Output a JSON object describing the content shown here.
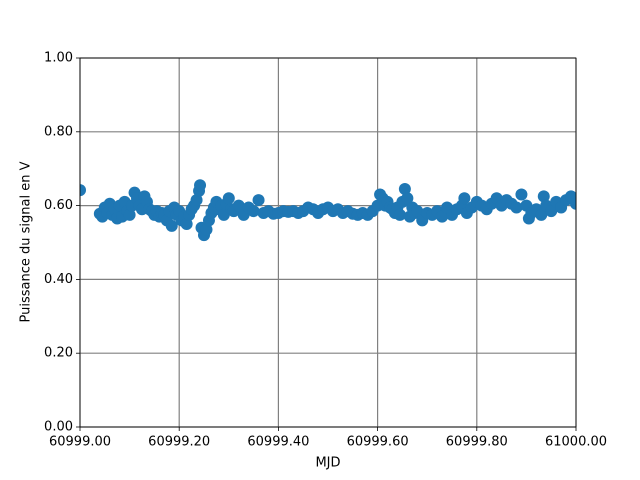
{
  "chart_data": {
    "type": "scatter",
    "xlabel": "MJD",
    "ylabel": "Puissance du signal en V",
    "x": [
      60999.0,
      60999.04,
      60999.045,
      60999.05,
      60999.055,
      60999.06,
      60999.065,
      60999.07,
      60999.075,
      60999.08,
      60999.085,
      60999.09,
      60999.095,
      60999.1,
      60999.105,
      60999.11,
      60999.115,
      60999.12,
      60999.125,
      60999.13,
      60999.135,
      60999.14,
      60999.145,
      60999.15,
      60999.155,
      60999.16,
      60999.165,
      60999.17,
      60999.175,
      60999.18,
      60999.185,
      60999.19,
      60999.195,
      60999.2,
      60999.205,
      60999.21,
      60999.215,
      60999.22,
      60999.225,
      60999.23,
      60999.235,
      60999.24,
      60999.242,
      60999.245,
      60999.25,
      60999.255,
      60999.26,
      60999.265,
      60999.27,
      60999.275,
      60999.28,
      60999.285,
      60999.29,
      60999.295,
      60999.3,
      60999.305,
      60999.31,
      60999.32,
      60999.33,
      60999.34,
      60999.35,
      60999.36,
      60999.37,
      60999.38,
      60999.39,
      60999.4,
      60999.41,
      60999.42,
      60999.43,
      60999.44,
      60999.45,
      60999.46,
      60999.47,
      60999.48,
      60999.49,
      60999.5,
      60999.51,
      60999.52,
      60999.53,
      60999.54,
      60999.55,
      60999.56,
      60999.57,
      60999.58,
      60999.59,
      60999.6,
      60999.605,
      60999.61,
      60999.615,
      60999.62,
      60999.625,
      60999.63,
      60999.635,
      60999.64,
      60999.645,
      60999.65,
      60999.655,
      60999.66,
      60999.665,
      60999.67,
      60999.675,
      60999.68,
      60999.69,
      60999.7,
      60999.71,
      60999.72,
      60999.73,
      60999.74,
      60999.75,
      60999.76,
      60999.77,
      60999.775,
      60999.78,
      60999.79,
      60999.8,
      60999.81,
      60999.82,
      60999.83,
      60999.84,
      60999.85,
      60999.86,
      60999.87,
      60999.88,
      60999.89,
      60999.9,
      60999.905,
      60999.91,
      60999.92,
      60999.93,
      60999.935,
      60999.94,
      60999.95,
      60999.96,
      60999.97,
      60999.98,
      60999.99,
      61000.0
    ],
    "series": [
      {
        "color": "#1f77b4",
        "values": [
          0.642,
          0.578,
          0.57,
          0.595,
          0.58,
          0.605,
          0.575,
          0.59,
          0.565,
          0.6,
          0.57,
          0.61,
          0.585,
          0.575,
          0.6,
          0.635,
          0.62,
          0.6,
          0.59,
          0.625,
          0.61,
          0.59,
          0.585,
          0.575,
          0.585,
          0.57,
          0.58,
          0.575,
          0.56,
          0.585,
          0.545,
          0.595,
          0.575,
          0.585,
          0.56,
          0.57,
          0.55,
          0.575,
          0.59,
          0.6,
          0.615,
          0.64,
          0.655,
          0.54,
          0.52,
          0.535,
          0.56,
          0.58,
          0.595,
          0.61,
          0.59,
          0.6,
          0.575,
          0.605,
          0.62,
          0.59,
          0.585,
          0.6,
          0.575,
          0.595,
          0.585,
          0.615,
          0.58,
          0.585,
          0.578,
          0.58,
          0.585,
          0.583,
          0.585,
          0.58,
          0.585,
          0.595,
          0.59,
          0.58,
          0.59,
          0.595,
          0.585,
          0.59,
          0.58,
          0.585,
          0.578,
          0.575,
          0.58,
          0.575,
          0.585,
          0.6,
          0.63,
          0.62,
          0.6,
          0.61,
          0.595,
          0.59,
          0.58,
          0.595,
          0.575,
          0.61,
          0.645,
          0.62,
          0.57,
          0.595,
          0.58,
          0.585,
          0.56,
          0.58,
          0.575,
          0.585,
          0.57,
          0.595,
          0.575,
          0.59,
          0.6,
          0.62,
          0.58,
          0.595,
          0.61,
          0.6,
          0.59,
          0.605,
          0.62,
          0.6,
          0.615,
          0.605,
          0.595,
          0.63,
          0.6,
          0.565,
          0.58,
          0.59,
          0.575,
          0.625,
          0.6,
          0.585,
          0.61,
          0.595,
          0.615,
          0.625,
          0.605
        ]
      }
    ],
    "xlim": [
      60999.0,
      61000.0
    ],
    "xticks": [
      {
        "value": 60999.0,
        "label": "60999.00"
      },
      {
        "value": 60999.2,
        "label": "60999.20"
      },
      {
        "value": 60999.4,
        "label": "60999.40"
      },
      {
        "value": 60999.6,
        "label": "60999.60"
      },
      {
        "value": 60999.8,
        "label": "60999.80"
      },
      {
        "value": 61000.0,
        "label": "61000.00"
      }
    ],
    "ylim": [
      0,
      1
    ],
    "yticks": [
      {
        "value": 0,
        "label": "0.00"
      },
      {
        "value": 0.2,
        "label": "0.20"
      },
      {
        "value": 0.4,
        "label": "0.40"
      },
      {
        "value": 0.6,
        "label": "0.60"
      },
      {
        "value": 0.8,
        "label": "0.80"
      },
      {
        "value": 1,
        "label": "1.00"
      }
    ],
    "grid": true
  }
}
